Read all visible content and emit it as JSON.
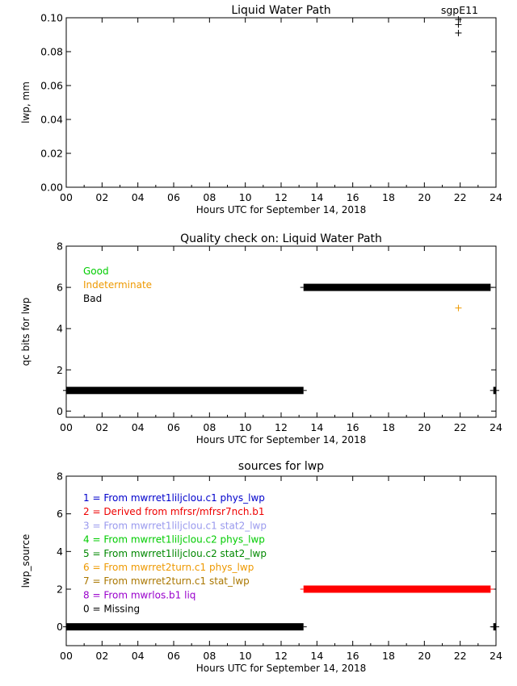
{
  "charts": [
    {
      "id": "lwp",
      "type": "scatter",
      "title": "Liquid Water Path",
      "site": "sgpE11",
      "ylabel": "lwp, mm",
      "xlabel": "Hours UTC for September 14, 2018",
      "xlim": [
        0,
        24
      ],
      "ylim": [
        0,
        0.1
      ],
      "xticks": [
        "00",
        "02",
        "04",
        "06",
        "08",
        "10",
        "12",
        "14",
        "16",
        "18",
        "20",
        "22",
        "24"
      ],
      "yticks": [
        "0.00",
        "0.02",
        "0.04",
        "0.06",
        "0.08",
        "0.10"
      ],
      "points": [
        {
          "x": 21.9,
          "y": 0.099
        },
        {
          "x": 21.9,
          "y": 0.096
        },
        {
          "x": 21.9,
          "y": 0.091
        }
      ]
    },
    {
      "id": "qc",
      "type": "scatter",
      "title": "Quality check on: Liquid Water Path",
      "ylabel": "qc bits for lwp",
      "xlabel": "Hours UTC for September 14, 2018",
      "xlim": [
        0,
        24
      ],
      "ylim": [
        -0.3,
        8
      ],
      "xticks": [
        "00",
        "02",
        "04",
        "06",
        "08",
        "10",
        "12",
        "14",
        "16",
        "18",
        "20",
        "22",
        "24"
      ],
      "yticks": [
        "0",
        "2",
        "4",
        "6",
        "8"
      ],
      "legend": [
        {
          "label": "Good",
          "color": "#00cc00"
        },
        {
          "label": "Indeterminate",
          "color": "#ee9900"
        },
        {
          "label": "Bad",
          "color": "#000000"
        }
      ],
      "segments": [
        {
          "x0": 0.0,
          "x1": 13.25,
          "y": 1,
          "color": "#000000"
        },
        {
          "x0": 13.25,
          "x1": 23.7,
          "y": 6,
          "color": "#000000"
        },
        {
          "x0": 23.85,
          "x1": 24.0,
          "y": 1,
          "color": "#000000"
        }
      ],
      "points": [
        {
          "x": 21.9,
          "y": 5,
          "color": "#ee9900"
        }
      ]
    },
    {
      "id": "src",
      "type": "scatter",
      "title": "sources for lwp",
      "ylabel": "lwp_source",
      "xlabel": "Hours UTC for September 14, 2018",
      "xlim": [
        0,
        24
      ],
      "ylim": [
        -1,
        8
      ],
      "xticks": [
        "00",
        "02",
        "04",
        "06",
        "08",
        "10",
        "12",
        "14",
        "16",
        "18",
        "20",
        "22",
        "24"
      ],
      "yticks": [
        "0",
        "2",
        "4",
        "6",
        "8"
      ],
      "legend": [
        {
          "label": "1 = From mwrret1liljclou.c1 phys_lwp",
          "color": "#0000cc"
        },
        {
          "label": "2 = Derived from mfrsr/mfrsr7nch.b1",
          "color": "#ee0000"
        },
        {
          "label": "3 = From mwrret1liljclou.c1 stat2_lwp",
          "color": "#9999ee"
        },
        {
          "label": "4 = From mwrret1liljclou.c2 phys_lwp",
          "color": "#00cc00"
        },
        {
          "label": "5 = From mwrret1liljclou.c2 stat2_lwp",
          "color": "#008800"
        },
        {
          "label": "6 = From mwrret2turn.c1 phys_lwp",
          "color": "#ee9900"
        },
        {
          "label": "7 = From mwrret2turn.c1 stat_lwp",
          "color": "#aa7700"
        },
        {
          "label": "8 = From mwrlos.b1 liq",
          "color": "#9900cc"
        },
        {
          "label": "0 = Missing",
          "color": "#000000"
        }
      ],
      "segments": [
        {
          "x0": 0.0,
          "x1": 13.25,
          "y": 0,
          "color": "#000000"
        },
        {
          "x0": 13.25,
          "x1": 23.7,
          "y": 2,
          "color": "#ff0000"
        },
        {
          "x0": 23.85,
          "x1": 24.0,
          "y": 0,
          "color": "#000000"
        }
      ]
    }
  ]
}
